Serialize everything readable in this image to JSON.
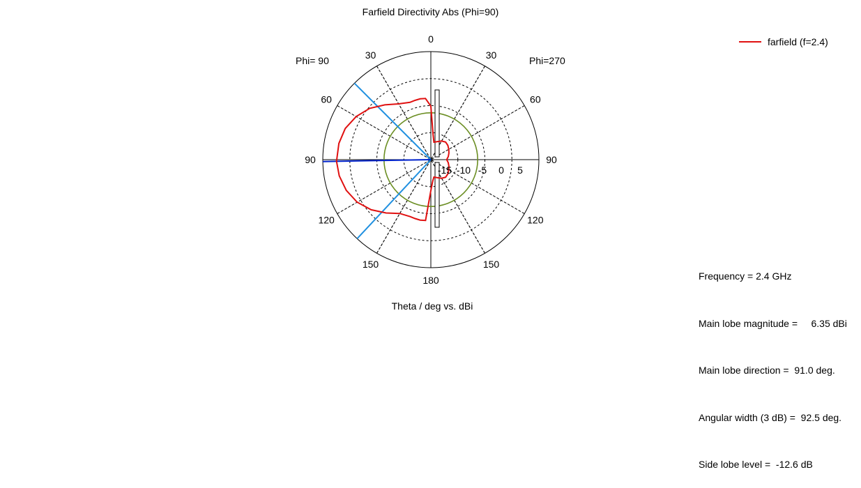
{
  "chart_data": {
    "type": "polar",
    "title": "Farfield Directivity Abs (Phi=90)",
    "xlabel": "Theta / deg vs. dBi",
    "left_half_label": "Phi= 90",
    "right_half_label": "Phi=270",
    "r_ticks": [
      "-15",
      "-10",
      "-5",
      "0",
      "5"
    ],
    "r_range_dBi": [
      -18.7,
      10
    ],
    "angle_labels": [
      {
        "text": "0",
        "deg": 0
      },
      {
        "text": "30",
        "deg": -30
      },
      {
        "text": "60",
        "deg": -60
      },
      {
        "text": "90",
        "deg": -90
      },
      {
        "text": "120",
        "deg": -120
      },
      {
        "text": "150",
        "deg": -150
      },
      {
        "text": "180",
        "deg": 180
      },
      {
        "text": "150",
        "deg": 150
      },
      {
        "text": "120",
        "deg": 120
      },
      {
        "text": "90",
        "deg": 90
      },
      {
        "text": "60",
        "deg": 60
      },
      {
        "text": "30",
        "deg": 30
      }
    ],
    "grid": true,
    "legend_position": "top-right",
    "series": [
      {
        "name": "farfield (f=2.4)",
        "color": "#e01010",
        "theta_deg": [
          0,
          5,
          10,
          15,
          20,
          30,
          40,
          50,
          60,
          70,
          80,
          91,
          100,
          110,
          120,
          130,
          140,
          150,
          160,
          165,
          170,
          175,
          180,
          185,
          190,
          200,
          210,
          220,
          230,
          240,
          250,
          260,
          270,
          280,
          290,
          300,
          310,
          320,
          330,
          340,
          350,
          355,
          360
        ],
        "dBi": [
          -4.5,
          -2.4,
          -2.3,
          -2.4,
          -2.5,
          -1.6,
          0.3,
          2.5,
          4.2,
          5.5,
          6.1,
          6.35,
          6.0,
          5.2,
          3.9,
          2.0,
          -0.2,
          -2.2,
          -2.6,
          -2.5,
          -2.4,
          -2.5,
          -10.5,
          -13.0,
          -14.0,
          -13.6,
          -13.0,
          -12.6,
          -12.8,
          -13.2,
          -13.6,
          -14.0,
          -14.5,
          -14.0,
          -13.6,
          -13.2,
          -12.8,
          -12.6,
          -13.0,
          -13.6,
          -14.0,
          -12.0,
          -4.5
        ]
      }
    ],
    "markers": {
      "main_lobe_direction_deg": 91,
      "beam_edges_deg": [
        45,
        137
      ],
      "side_lobe_circle_dBi": -6.26
    }
  },
  "info": {
    "frequency": "Frequency = 2.4 GHz",
    "main_lobe_magnitude": "Main lobe magnitude =     6.35 dBi",
    "main_lobe_direction": "Main lobe direction =  91.0 deg.",
    "angular_width": "Angular width (3 dB) =  92.5 deg.",
    "side_lobe_level": "Side lobe level =  -12.6 dB"
  },
  "colors": {
    "pattern": "#e01010",
    "main_lobe": "#0022cc",
    "beamwidth": "#2090e0",
    "side_lobe_circle": "#6b8e23",
    "grid": "#000000"
  }
}
